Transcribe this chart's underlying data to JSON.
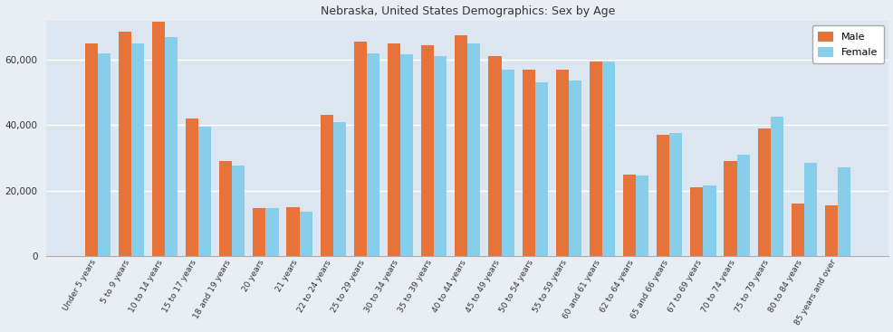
{
  "title": "Nebraska, United States Demographics: Sex by Age",
  "categories": [
    "Under 5 years",
    "5 to 9 years",
    "10 to 14 years",
    "15 to 17 years",
    "18 and 19 years",
    "20 years",
    "21 years",
    "22 to 24 years",
    "25 to 29 years",
    "30 to 34 years",
    "35 to 39 years",
    "40 to 44 years",
    "45 to 49 years",
    "50 to 54 years",
    "55 to 59 years",
    "60 and 61 years",
    "62 to 64 years",
    "65 and 66 years",
    "67 to 69 years",
    "70 to 74 years",
    "75 to 79 years",
    "80 to 84 years",
    "85 years and over"
  ],
  "male": [
    65000,
    68500,
    71500,
    42000,
    29000,
    14500,
    15000,
    43000,
    65500,
    65000,
    64500,
    67500,
    61000,
    57000,
    57000,
    59500,
    25000,
    37000,
    21000,
    29000,
    39000,
    16000,
    15500
  ],
  "female": [
    62000,
    65000,
    67000,
    39500,
    27500,
    14500,
    13500,
    41000,
    62000,
    61500,
    61000,
    65000,
    57000,
    53000,
    53500,
    59500,
    24500,
    37500,
    21500,
    31000,
    42500,
    28500,
    27000
  ],
  "male_color": "#E8733A",
  "female_color": "#87CEEB",
  "ylim": [
    0,
    72000
  ],
  "yticks": [
    0,
    20000,
    40000,
    60000
  ],
  "background_color": "#e8eef4",
  "plot_bg_color": "#dce6f0",
  "legend_labels": [
    "Male",
    "Female"
  ],
  "title_fontsize": 9,
  "tick_label_fontsize": 6.5,
  "bar_width": 0.38
}
